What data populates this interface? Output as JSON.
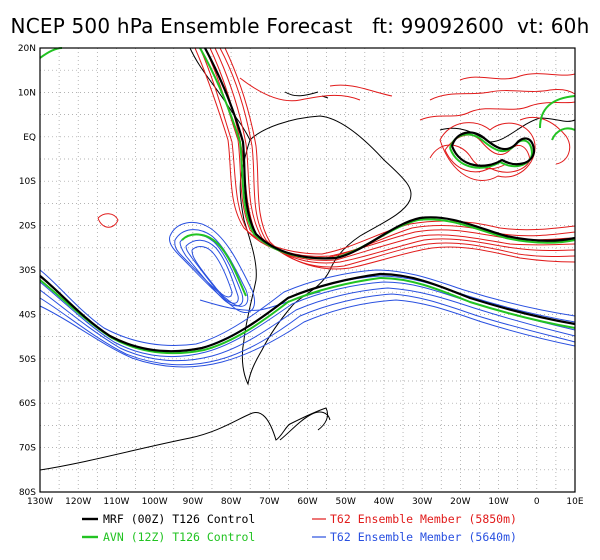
{
  "title": "NCEP 500 hPa Ensemble Forecast   ft: 99092600  vt: 60h",
  "map": {
    "lon_range": [
      -130,
      10
    ],
    "lat_range": [
      -80,
      20
    ],
    "lat_labels": [
      "20N",
      "10N",
      "EQ",
      "10S",
      "20S",
      "30S",
      "40S",
      "50S",
      "60S",
      "70S",
      "80S"
    ],
    "lon_labels": [
      "130W",
      "120W",
      "110W",
      "100W",
      "90W",
      "80W",
      "70W",
      "60W",
      "50W",
      "40W",
      "30W",
      "20W",
      "10W",
      "0",
      "10E"
    ],
    "grid": "dotted, every 5 degrees"
  },
  "legend": [
    {
      "label": "MRF (00Z) T126 Control",
      "color": "#000000"
    },
    {
      "label": "AVN (12Z) T126 Control",
      "color": "#22c322"
    },
    {
      "label": "T62 Ensemble Member (5850m)",
      "color": "#e11b1b"
    },
    {
      "label": "T62 Ensemble Member (5640m)",
      "color": "#2950e0"
    }
  ],
  "colors": {
    "mrf": "#000000",
    "avn": "#22c322",
    "red": "#e11b1b",
    "blue": "#2950e0",
    "coast": "#000000"
  }
}
